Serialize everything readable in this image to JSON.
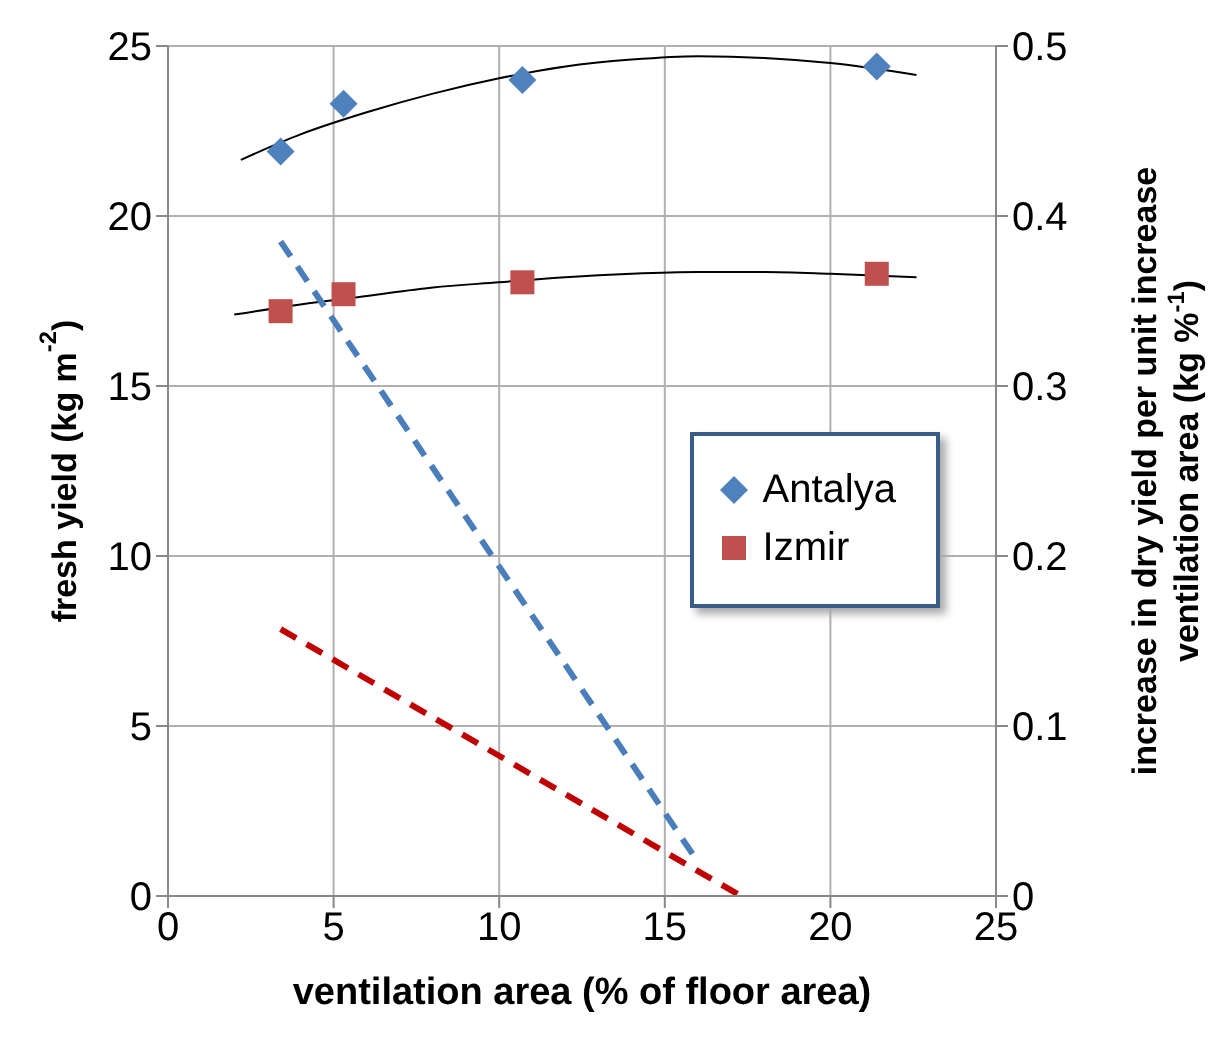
{
  "chart_data": {
    "type": "scatter",
    "xlabel": "ventilation area (% of floor area)",
    "ylabel": "fresh yield (kg m$^{-2}$)",
    "y2label": "increase in dry yield per unit increase ventilation area (kg %$^{-1}$)",
    "xlim": [
      0,
      25
    ],
    "xticks": [
      0,
      5,
      10,
      15,
      20,
      25
    ],
    "ylim": [
      0,
      25
    ],
    "yticks": [
      0,
      5,
      10,
      15,
      20,
      25
    ],
    "y2lim": [
      0,
      0.5
    ],
    "y2ticks": [
      0,
      0.1,
      0.2,
      0.3,
      0.4,
      0.5
    ],
    "grid": true,
    "legend": "right",
    "series": [
      {
        "name": "Antalya",
        "marker": "diamond",
        "color": "#4f81bd",
        "x": [
          3.4,
          5.3,
          10.7,
          21.4
        ],
        "values": [
          21.9,
          23.3,
          24.0,
          24.4
        ]
      },
      {
        "name": "Izmir",
        "marker": "square",
        "color": "#c0504d",
        "x": [
          3.4,
          5.3,
          10.7,
          21.4
        ],
        "values": [
          17.2,
          17.7,
          18.05,
          18.3
        ]
      },
      {
        "type": "line",
        "color": "#000000",
        "x": [
          2.2,
          4,
          6,
          8,
          10,
          12,
          14,
          16,
          18,
          20,
          22.6
        ],
        "values": [
          21.65,
          22.4,
          23.05,
          23.6,
          24.05,
          24.4,
          24.6,
          24.7,
          24.65,
          24.5,
          24.15
        ]
      },
      {
        "type": "line",
        "color": "#000000",
        "x": [
          2,
          4,
          6,
          8,
          10,
          12,
          14,
          16,
          18,
          20,
          22.6
        ],
        "values": [
          17.1,
          17.4,
          17.65,
          17.9,
          18.05,
          18.2,
          18.3,
          18.35,
          18.35,
          18.3,
          18.2
        ]
      },
      {
        "type": "line",
        "axis": "y2",
        "color": "#4a7ebb",
        "line_style": "dashed",
        "x": [
          3.4,
          16
        ],
        "values": [
          0.385,
          0.02
        ]
      },
      {
        "type": "line",
        "axis": "y2",
        "color": "#c00000",
        "line_style": "dashed",
        "x": [
          3.4,
          17.3
        ],
        "values": [
          0.157,
          0
        ]
      }
    ]
  }
}
